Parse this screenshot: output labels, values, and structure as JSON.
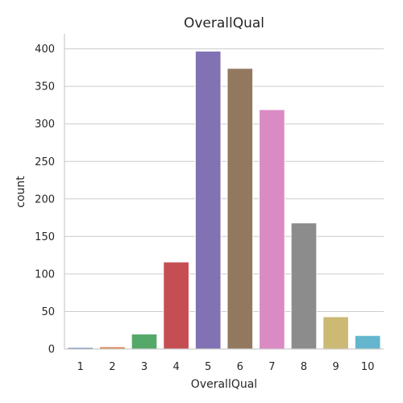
{
  "chart_data": {
    "type": "bar",
    "title": "OverallQual",
    "xlabel": "OverallQual",
    "ylabel": "count",
    "categories": [
      "1",
      "2",
      "3",
      "4",
      "5",
      "6",
      "7",
      "8",
      "9",
      "10"
    ],
    "values": [
      2,
      3,
      20,
      116,
      397,
      374,
      319,
      168,
      43,
      18
    ],
    "colors": [
      "#4c72b0",
      "#dd8452",
      "#55a868",
      "#c44e52",
      "#8172b3",
      "#937860",
      "#da8bc3",
      "#8c8c8c",
      "#ccb974",
      "#64b5cd"
    ],
    "yticks": [
      0,
      50,
      100,
      150,
      200,
      250,
      300,
      350,
      400
    ],
    "ylim": [
      0,
      420
    ],
    "grid": "horizontal",
    "legend": "none"
  }
}
